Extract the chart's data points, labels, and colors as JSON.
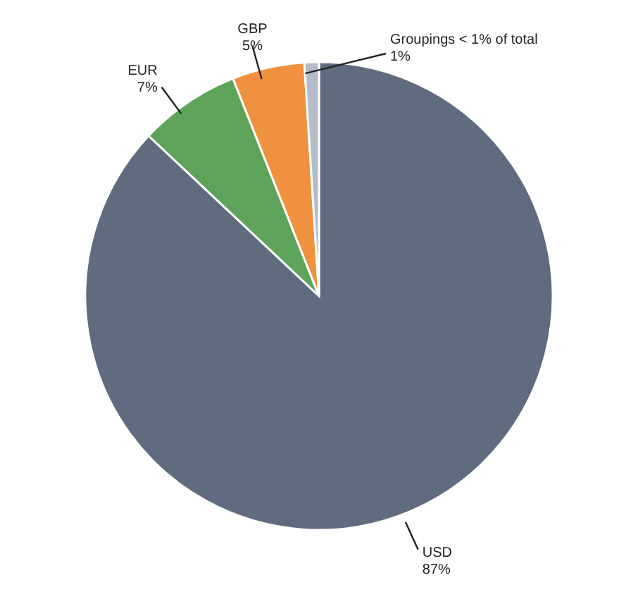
{
  "chart_data": {
    "type": "pie",
    "categories": [
      "USD",
      "EUR",
      "GBP",
      "Groupings < 1% of total"
    ],
    "values": [
      87,
      7,
      5,
      1
    ],
    "value_labels": [
      "87%",
      "7%",
      "5%",
      "1%"
    ],
    "colors": [
      "#5f6b7f",
      "#5ea35a",
      "#f0913f",
      "#b4bcc8"
    ]
  }
}
